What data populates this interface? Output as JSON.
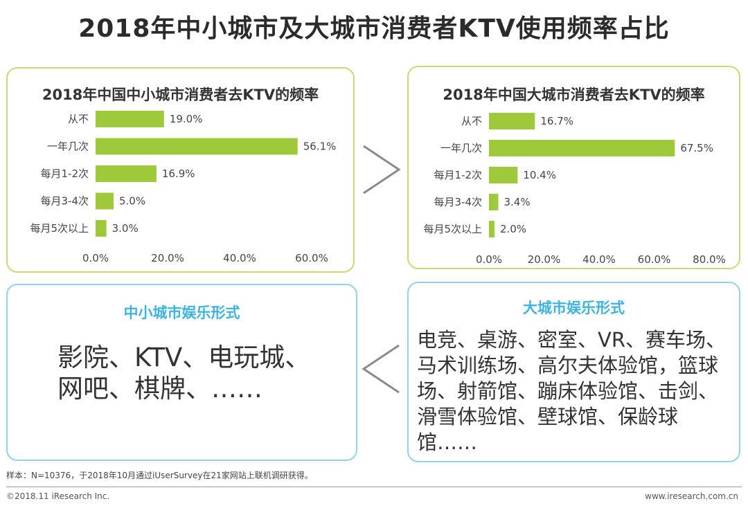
{
  "page": {
    "title": "2018年中小城市及大城市消费者KTV使用频率占比",
    "note": "样本：N=10376，于2018年10月通过iUserSurvey在21家网站上联机调研获得。",
    "copyright": "©2018.11 iResearch Inc.",
    "site": "www.iresearch.com.cn",
    "compare_symbol_top": ">",
    "compare_symbol_bottom": "<"
  },
  "colors": {
    "bar": "#9ec93a",
    "green_border": "#c5dc72",
    "blue_border": "#8fd3ec",
    "accent_blue": "#3cb3e0"
  },
  "chart_data": [
    {
      "type": "bar",
      "orientation": "horizontal",
      "title": "2018年中国中小城市消费者去KTV的频率",
      "categories": [
        "从不",
        "一年几次",
        "每月1-2次",
        "每月3-4次",
        "每月5次以上"
      ],
      "values": [
        19.0,
        56.1,
        16.9,
        5.0,
        3.0
      ],
      "value_labels": [
        "19.0%",
        "56.1%",
        "16.9%",
        "5.0%",
        "3.0%"
      ],
      "xlim": [
        0,
        60
      ],
      "xticks": [
        0,
        20,
        40,
        60
      ],
      "xtick_labels": [
        "0.0%",
        "20.0%",
        "40.0%",
        "60.0%"
      ],
      "grid": false
    },
    {
      "type": "bar",
      "orientation": "horizontal",
      "title": "2018年中国大城市消费者去KTV的频率",
      "categories": [
        "从不",
        "一年几次",
        "每月1-2次",
        "每月3-4次",
        "每月5次以上"
      ],
      "values": [
        16.7,
        67.5,
        10.4,
        3.4,
        2.0
      ],
      "value_labels": [
        "16.7%",
        "67.5%",
        "10.4%",
        "3.4%",
        "2.0%"
      ],
      "xlim": [
        0,
        80
      ],
      "xticks": [
        0,
        20,
        40,
        60,
        80
      ],
      "xtick_labels": [
        "0.0%",
        "20.0%",
        "40.0%",
        "60.0%",
        "80.0%"
      ],
      "grid": false
    }
  ],
  "entertainment": {
    "small": {
      "title": "中小城市娱乐形式",
      "lines": [
        "影院、KTV、电玩城、",
        "网吧、棋牌、……"
      ]
    },
    "large": {
      "title": "大城市娱乐形式",
      "lines": [
        "电竞、桌游、密室、VR、赛车场、",
        "马术训练场、高尔夫体验馆，篮球",
        "场、射箭馆、蹦床体验馆、击剑、",
        "滑雪体验馆、壁球馆、保龄球",
        "馆……"
      ]
    }
  }
}
